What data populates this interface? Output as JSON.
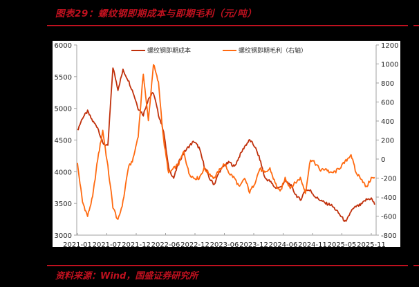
{
  "header": {
    "title": "图表29：螺纹钢即期成本与即期毛利（元/吨）"
  },
  "footer": {
    "source": "资料来源：Wind，国盛证券研究所"
  },
  "colors": {
    "accent": "#c0111f",
    "series_cost": "#c0300b",
    "series_margin": "#ff6a10",
    "axis": "#a0a0a0"
  },
  "chart_data": {
    "type": "line",
    "title": "螺纹钢即期成本与即期毛利（元/吨）",
    "xlabel": "",
    "ylabel": "",
    "x_tick_labels": [
      "2021-01",
      "2021-07",
      "2021-12",
      "2022-06",
      "2022-12",
      "2023-06",
      "2023-12",
      "2024-06",
      "2024-11",
      "2025-05",
      "2025-11"
    ],
    "y_left": {
      "ticks": [
        6000,
        5500,
        5000,
        4500,
        4000,
        3500,
        3000
      ],
      "ylim": [
        3000,
        6000
      ]
    },
    "y_right": {
      "ticks": [
        1200,
        1000,
        800,
        600,
        400,
        200,
        0,
        -200,
        -400,
        -600,
        -800
      ],
      "ylim": [
        -800,
        1200
      ]
    },
    "grid": false,
    "legend_position": "top-center",
    "x": [
      "2021-01",
      "2021-02",
      "2021-03",
      "2021-04",
      "2021-05",
      "2021-06",
      "2021-07",
      "2021-08",
      "2021-09",
      "2021-10",
      "2021-11",
      "2021-12",
      "2022-01",
      "2022-02",
      "2022-03",
      "2022-04",
      "2022-05",
      "2022-06",
      "2022-07",
      "2022-08",
      "2022-09",
      "2022-10",
      "2022-11",
      "2022-12",
      "2023-01",
      "2023-02",
      "2023-03",
      "2023-04",
      "2023-05",
      "2023-06",
      "2023-07",
      "2023-08",
      "2023-09",
      "2023-10",
      "2023-11",
      "2023-12",
      "2024-01",
      "2024-02",
      "2024-03",
      "2024-04",
      "2024-05",
      "2024-06",
      "2024-07",
      "2024-08",
      "2024-09",
      "2024-10",
      "2024-11",
      "2024-12",
      "2025-01",
      "2025-02",
      "2025-03",
      "2025-04",
      "2025-05",
      "2025-06",
      "2025-07",
      "2025-08",
      "2025-09",
      "2025-10",
      "2025-11",
      "2025-12"
    ],
    "series": [
      {
        "name": "螺纹钢即期成本",
        "axis": "left",
        "color": "#c0300b",
        "values": [
          4650,
          4850,
          4950,
          4800,
          4700,
          4450,
          4400,
          5650,
          5300,
          5600,
          5450,
          5250,
          5000,
          4900,
          5150,
          5250,
          4900,
          4650,
          4050,
          3900,
          4150,
          4300,
          4400,
          4480,
          4380,
          4100,
          3900,
          3800,
          4000,
          4100,
          4150,
          4080,
          4250,
          4400,
          4500,
          4400,
          4200,
          3900,
          3850,
          3750,
          3750,
          3850,
          3800,
          3650,
          3550,
          3720,
          3700,
          3600,
          3550,
          3500,
          3480,
          3400,
          3300,
          3200,
          3380,
          3450,
          3480,
          3560,
          3580,
          3440
        ]
      },
      {
        "name": "螺纹钢即期毛利（右轴）",
        "axis": "right",
        "color": "#ff6a10",
        "values": [
          -50,
          -450,
          -600,
          -400,
          0,
          300,
          -80,
          -500,
          -650,
          -450,
          -100,
          0,
          250,
          900,
          400,
          1000,
          800,
          200,
          -150,
          -100,
          -50,
          80,
          -150,
          -200,
          -200,
          -100,
          -150,
          -200,
          -120,
          -50,
          -150,
          -200,
          -300,
          -200,
          -350,
          -250,
          -100,
          -150,
          -100,
          -250,
          -350,
          -200,
          -300,
          -250,
          -200,
          -350,
          0,
          -50,
          -120,
          -100,
          -150,
          -130,
          -80,
          -20,
          50,
          -150,
          -200,
          -300,
          -200,
          -200
        ]
      }
    ]
  },
  "legend": {
    "cost_label": "螺纹钢即期成本",
    "margin_label": "螺纹钢即期毛利（右轴）"
  }
}
